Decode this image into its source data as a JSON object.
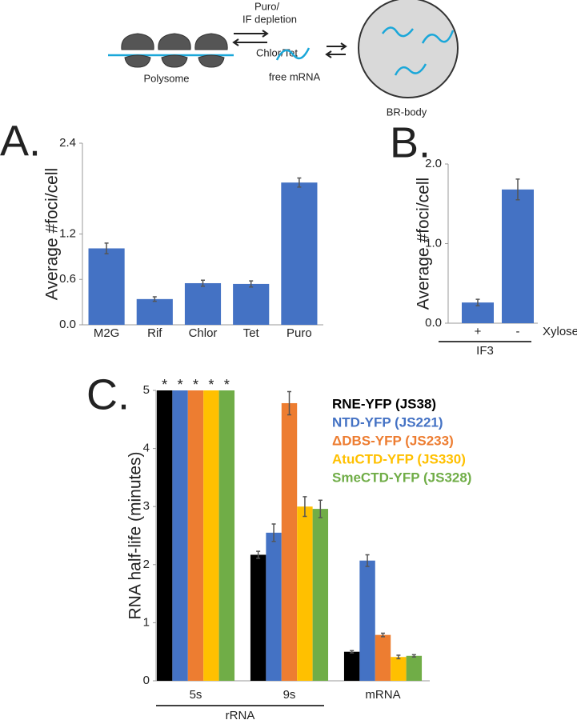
{
  "diagram": {
    "polysome": "Polysome",
    "forward": [
      "Puro/",
      "IF depletion"
    ],
    "reverse": "Chlor/Tet",
    "free_mrna": "free mRNA",
    "br_body": "BR-body"
  },
  "chart_data": [
    {
      "type": "bar",
      "panel": "A.",
      "ylabel": "Average #foci/cell",
      "categories": [
        "M2G",
        "Rif",
        "Chlor",
        "Tet",
        "Puro"
      ],
      "values": [
        1.01,
        0.34,
        0.55,
        0.54,
        1.88
      ],
      "errors": [
        0.07,
        0.03,
        0.04,
        0.04,
        0.06
      ],
      "color": "#4472c4",
      "ylim": [
        0,
        2.4
      ],
      "yticks": [
        {
          "value": 0,
          "label": "0.0"
        },
        0.6,
        1.2,
        2.4
      ]
    },
    {
      "type": "bar",
      "panel": "B.",
      "ylabel": "Average #foci/cell",
      "xlabel": "Xylose",
      "group_label": "IF3",
      "categories": [
        "+",
        "-"
      ],
      "values": [
        0.26,
        1.68
      ],
      "errors": [
        0.04,
        0.13
      ],
      "color": "#4472c4",
      "ylim": [
        0,
        2.0
      ],
      "yticks": [
        {
          "value": 0,
          "label": "0.0"
        },
        {
          "value": 1,
          "label": "1.0"
        },
        {
          "value": 2,
          "label": "2.0"
        }
      ]
    },
    {
      "type": "bar",
      "panel": "C.",
      "ylabel": "RNA half-life (minutes)",
      "group_label": "rRNA",
      "categories": [
        "5s",
        "9s",
        "mRNA"
      ],
      "series": [
        {
          "name": "RNE-YFP (JS38)",
          "color": "#000000",
          "values": [
            5,
            2.17,
            0.5
          ],
          "errors": [
            null,
            0.06,
            0.02
          ]
        },
        {
          "name": "NTD-YFP (JS221)",
          "color": "#4472c4",
          "values": [
            5,
            2.55,
            2.07
          ],
          "errors": [
            null,
            0.15,
            0.1
          ]
        },
        {
          "name": "ΔDBS-YFP (JS233)",
          "color": "#ed7d31",
          "values": [
            5,
            4.78,
            0.79
          ],
          "errors": [
            null,
            0.2,
            0.03
          ]
        },
        {
          "name": "AtuCTD-YFP (JS330)",
          "color": "#ffc000",
          "values": [
            5,
            3.0,
            0.41
          ],
          "errors": [
            null,
            0.17,
            0.03
          ]
        },
        {
          "name": "SmeCTD-YFP (JS328)",
          "color": "#70ad47",
          "values": [
            5,
            2.96,
            0.43
          ],
          "errors": [
            null,
            0.15,
            0.02
          ]
        }
      ],
      "annotations": [
        "*",
        "*",
        "*",
        "*",
        "*"
      ],
      "ylim": [
        0,
        5
      ],
      "yticks": [
        0,
        1,
        2,
        3,
        4,
        5
      ]
    }
  ]
}
